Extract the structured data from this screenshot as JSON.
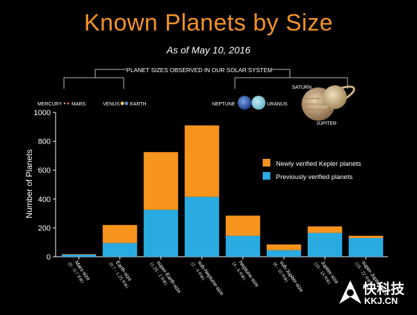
{
  "title": "Known Planets by Size",
  "subtitle": "As of May 10, 2016",
  "solar_system_header": "PLANET SIZES OBSERVED IN OUR SOLAR SYSTEM",
  "solar_planets": {
    "mercury": "MERCURY",
    "mars": "MARS",
    "venus": "VENUS",
    "earth": "EARTH",
    "neptune": "NEPTUNE",
    "uranus": "URANUS",
    "saturn": "SATURN",
    "jupiter": "JUPITER"
  },
  "colors": {
    "kepler": "#f7941d",
    "previous": "#29abe2",
    "title": "#f4922a"
  },
  "watermark": {
    "cn": "快科技",
    "en": "KKJ.CN"
  },
  "chart_data": {
    "type": "bar",
    "stacked": true,
    "categories": [
      "Mars-size",
      "Earth-size",
      "super-Earth-size",
      "sub-Neptune-size",
      "Neptune-size",
      "sub-Jupiter-size",
      "Jupiter-size",
      "super-Jupiter-size"
    ],
    "category_ranges": [
      "(0 - 0.7 R⊕)",
      "(0.7 - 1.25 R⊕)",
      "(1.25 - 2 R⊕)",
      "(2 - 4 R⊕)",
      "(4 - 6 R⊕)",
      "(6 - 10 R⊕)",
      "(10 - 15 R⊕)",
      "(15 - 22 R⊕)"
    ],
    "series": [
      {
        "name": "Previously verified planets",
        "values": [
          15,
          95,
          325,
          415,
          145,
          45,
          165,
          130
        ]
      },
      {
        "name": "Newly verified Kepler planets",
        "values": [
          3,
          125,
          400,
          495,
          140,
          40,
          45,
          15
        ]
      }
    ],
    "ylabel": "Number of Planets",
    "xlabel": "",
    "ylim": [
      0,
      1000
    ],
    "yticks": [
      0,
      200,
      400,
      600,
      800,
      1000
    ],
    "legend": {
      "position": "right",
      "entries": [
        "Newly verified Kepler planets",
        "Previously verified planets"
      ]
    }
  }
}
